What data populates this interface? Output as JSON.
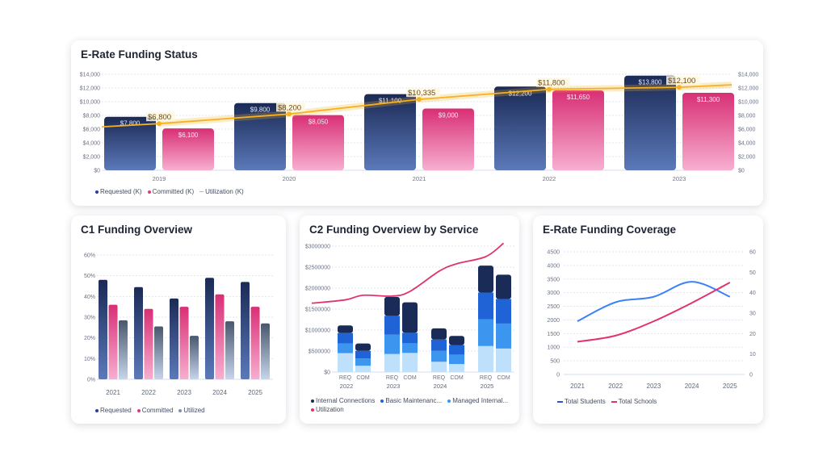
{
  "chart_data": [
    {
      "type": "bar",
      "title": "E-Rate Funding Status",
      "categories": [
        "2019",
        "2020",
        "2021",
        "2022",
        "2023"
      ],
      "ylim": [
        0,
        14000
      ],
      "y_tick_labels": [
        "$0",
        "$2,000",
        "$4,000",
        "$6,000",
        "$8,000",
        "$10,000",
        "$12,000",
        "$14,000"
      ],
      "secondary_y_tick_labels": [
        "$0",
        "$2,000",
        "$4,000",
        "$6,000",
        "$8,000",
        "$10,000",
        "$12,000",
        "$14,000"
      ],
      "grid": true,
      "legend_position": "bottom-left",
      "series": [
        {
          "name": "Requested (K)",
          "type": "bar",
          "color": "#23356a",
          "values": [
            7800,
            9800,
            11100,
            12200,
            13800
          ]
        },
        {
          "name": "Committed (K)",
          "type": "bar",
          "color": "#de3a7e",
          "values": [
            6100,
            8050,
            9000,
            11650,
            11300
          ]
        },
        {
          "name": "Utilization (K)",
          "type": "line",
          "color": "#f5b120",
          "values": [
            6800,
            8200,
            10335,
            11800,
            12100
          ]
        }
      ]
    },
    {
      "type": "bar",
      "title": "C1 Funding Overview",
      "categories": [
        "2021",
        "2022",
        "2023",
        "2024",
        "2025"
      ],
      "ylim": [
        0,
        60
      ],
      "y_tick_labels": [
        "0%",
        "10%",
        "20%",
        "30%",
        "40%",
        "50%",
        "60%"
      ],
      "grid": true,
      "legend_position": "bottom-left",
      "series": [
        {
          "name": "Requested",
          "color": "#2a3f7a",
          "values": [
            48,
            44.5,
            39,
            49,
            47
          ]
        },
        {
          "name": "Committed",
          "color": "#de3a7e",
          "values": [
            36,
            34,
            35,
            41,
            35
          ]
        },
        {
          "name": "Utilized",
          "color": "#5a6b85",
          "values": [
            28.5,
            25.5,
            21,
            28,
            27
          ]
        }
      ]
    },
    {
      "type": "bar",
      "stacked": true,
      "title": "C2 Funding Overview by Service",
      "categories": [
        "REQ",
        "COM",
        "REQ",
        "COM",
        "REQ",
        "COM",
        "REQ",
        "COM"
      ],
      "groups": [
        "2022",
        "2023",
        "2024",
        "2025"
      ],
      "ylim": [
        0,
        3000000
      ],
      "y_tick_labels": [
        "$0",
        "$500000",
        "$1000000",
        "$1500000",
        "$2000000",
        "$2500000",
        "$3000000"
      ],
      "grid": true,
      "legend_position": "bottom-left",
      "series": [
        {
          "name": "",
          "color": "#bfe0fb",
          "values": [
            450000,
            150000,
            430000,
            455000,
            245000,
            190000,
            620000,
            560000
          ]
        },
        {
          "name": "Managed Internal...",
          "color": "#3c96f0",
          "values": [
            230000,
            175000,
            460000,
            230000,
            260000,
            225000,
            635000,
            595000
          ]
        },
        {
          "name": "Basic Maintenanc...",
          "color": "#1f63d6",
          "values": [
            250000,
            180000,
            450000,
            250000,
            270000,
            230000,
            640000,
            585000
          ]
        },
        {
          "name": "Internal Connections",
          "color": "#1a2b57",
          "values": [
            180000,
            175000,
            450000,
            725000,
            265000,
            215000,
            640000,
            580000
          ]
        },
        {
          "name": "Utilization",
          "type": "line",
          "color": "#e0336f",
          "values": [
            1720000,
            1830000,
            1810000,
            1920000,
            2400000,
            2580000,
            2750000,
            3070000
          ]
        }
      ]
    },
    {
      "type": "line",
      "title": "E-Rate Funding Coverage",
      "categories": [
        "2021",
        "2022",
        "2023",
        "2024",
        "2025"
      ],
      "ylim": [
        0,
        4500
      ],
      "y_tick_labels": [
        "0",
        "500",
        "1000",
        "1500",
        "2000",
        "2500",
        "3000",
        "3500",
        "4000",
        "4500"
      ],
      "secondary_ylim": [
        0,
        60
      ],
      "secondary_y_tick_labels": [
        "0",
        "10",
        "20",
        "30",
        "40",
        "50",
        "60"
      ],
      "grid": true,
      "legend_position": "bottom-left",
      "series": [
        {
          "name": "Total Students",
          "axis": "left",
          "color": "#3b82f6",
          "values": [
            1950,
            2650,
            2850,
            3400,
            2850
          ]
        },
        {
          "name": "Total Schools",
          "axis": "right",
          "color": "#e0336f",
          "values": [
            16,
            19,
            26,
            35,
            45
          ]
        }
      ]
    }
  ]
}
